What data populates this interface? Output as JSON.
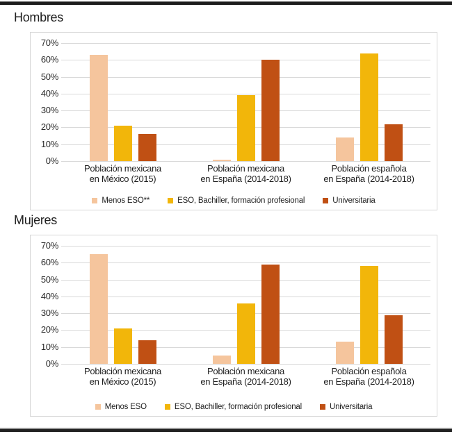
{
  "colors": {
    "menos_eso": "#F5C59D",
    "eso_bachiller": "#F2B60A",
    "universitaria": "#C05014",
    "gridline": "#D9D9D9",
    "box_border": "#D6D6D6",
    "text": "#262626",
    "rule": "#1F1F1F"
  },
  "chart_data": [
    {
      "type": "bar",
      "title": "Hombres",
      "xlabel": "",
      "ylabel": "",
      "ylim": [
        0,
        70
      ],
      "grid": true,
      "legend_position": "bottom",
      "y_ticks": [
        "70%",
        "60%",
        "50%",
        "40%",
        "30%",
        "20%",
        "10%",
        "0%"
      ],
      "categories": [
        "Población mexicana\nen México (2015)",
        "Población mexicana\nen España (2014-2018)",
        "Población española\nen España (2014-2018)"
      ],
      "series": [
        {
          "name": "Menos ESO**",
          "color": "#F5C59D",
          "values": [
            63,
            1,
            14
          ]
        },
        {
          "name": "ESO, Bachiller, formación profesional",
          "color": "#F2B60A",
          "values": [
            21,
            39,
            64
          ]
        },
        {
          "name": "Universitaria",
          "color": "#C05014",
          "values": [
            16,
            60,
            22
          ]
        }
      ]
    },
    {
      "type": "bar",
      "title": "Mujeres",
      "xlabel": "",
      "ylabel": "",
      "ylim": [
        0,
        70
      ],
      "grid": true,
      "legend_position": "bottom",
      "y_ticks": [
        "70%",
        "60%",
        "50%",
        "40%",
        "30%",
        "20%",
        "10%",
        "0%"
      ],
      "categories": [
        "Población mexicana\nen México (2015)",
        "Población mexicana\nen España (2014-2018)",
        "Población española\nen España (2014-2018)"
      ],
      "series": [
        {
          "name": "Menos ESO",
          "color": "#F5C59D",
          "values": [
            65,
            5,
            13
          ]
        },
        {
          "name": "ESO, Bachiller, formación profesional",
          "color": "#F2B60A",
          "values": [
            21,
            36,
            58
          ]
        },
        {
          "name": "Universitaria",
          "color": "#C05014",
          "values": [
            14,
            59,
            29
          ]
        }
      ]
    }
  ]
}
